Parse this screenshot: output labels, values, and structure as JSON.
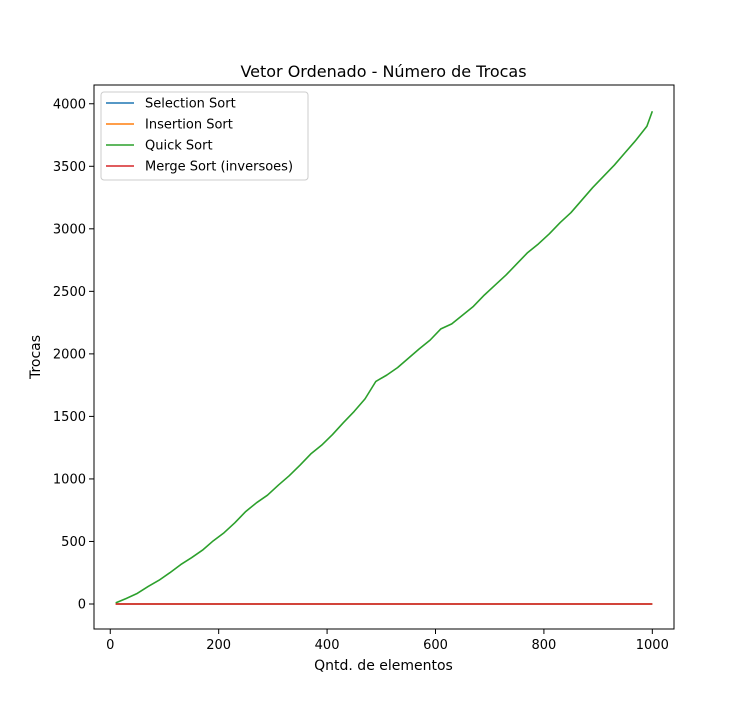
{
  "chart_data": {
    "type": "line",
    "title": "Vetor Ordenado - Número de Trocas",
    "xlabel": "Qntd. de elementos",
    "ylabel": "Trocas",
    "xlim": [
      -30,
      1040
    ],
    "ylim": [
      -200,
      4150
    ],
    "xticks": [
      0,
      200,
      400,
      600,
      800,
      1000
    ],
    "yticks": [
      0,
      500,
      1000,
      1500,
      2000,
      2500,
      3000,
      3500,
      4000
    ],
    "grid": false,
    "legend_position": "upper left",
    "x": [
      10,
      30,
      50,
      70,
      90,
      110,
      130,
      150,
      170,
      190,
      210,
      230,
      250,
      270,
      290,
      310,
      330,
      350,
      370,
      390,
      410,
      430,
      450,
      470,
      490,
      510,
      530,
      550,
      570,
      590,
      610,
      630,
      650,
      670,
      690,
      710,
      730,
      750,
      770,
      790,
      810,
      830,
      850,
      870,
      890,
      910,
      930,
      950,
      970,
      990,
      1000
    ],
    "series": [
      {
        "name": "Selection Sort",
        "color": "#1f77b4",
        "values": [
          0,
          0,
          0,
          0,
          0,
          0,
          0,
          0,
          0,
          0,
          0,
          0,
          0,
          0,
          0,
          0,
          0,
          0,
          0,
          0,
          0,
          0,
          0,
          0,
          0,
          0,
          0,
          0,
          0,
          0,
          0,
          0,
          0,
          0,
          0,
          0,
          0,
          0,
          0,
          0,
          0,
          0,
          0,
          0,
          0,
          0,
          0,
          0,
          0,
          0,
          0
        ]
      },
      {
        "name": "Insertion Sort",
        "color": "#ff7f0e",
        "values": [
          0,
          0,
          0,
          0,
          0,
          0,
          0,
          0,
          0,
          0,
          0,
          0,
          0,
          0,
          0,
          0,
          0,
          0,
          0,
          0,
          0,
          0,
          0,
          0,
          0,
          0,
          0,
          0,
          0,
          0,
          0,
          0,
          0,
          0,
          0,
          0,
          0,
          0,
          0,
          0,
          0,
          0,
          0,
          0,
          0,
          0,
          0,
          0,
          0,
          0,
          0
        ]
      },
      {
        "name": "Quick Sort",
        "color": "#2ca02c",
        "values": [
          9,
          45,
          85,
          140,
          190,
          250,
          315,
          370,
          430,
          505,
          570,
          650,
          740,
          810,
          870,
          950,
          1025,
          1110,
          1200,
          1270,
          1355,
          1450,
          1540,
          1640,
          1780,
          1830,
          1890,
          1965,
          2040,
          2110,
          2200,
          2240,
          2310,
          2380,
          2470,
          2550,
          2630,
          2720,
          2810,
          2880,
          2960,
          3050,
          3130,
          3230,
          3330,
          3420,
          3510,
          3610,
          3710,
          3820,
          3940
        ]
      },
      {
        "name": "Merge Sort (inversoes)",
        "color": "#d62728",
        "values": [
          0,
          0,
          0,
          0,
          0,
          0,
          0,
          0,
          0,
          0,
          0,
          0,
          0,
          0,
          0,
          0,
          0,
          0,
          0,
          0,
          0,
          0,
          0,
          0,
          0,
          0,
          0,
          0,
          0,
          0,
          0,
          0,
          0,
          0,
          0,
          0,
          0,
          0,
          0,
          0,
          0,
          0,
          0,
          0,
          0,
          0,
          0,
          0,
          0,
          0,
          0
        ]
      }
    ]
  }
}
